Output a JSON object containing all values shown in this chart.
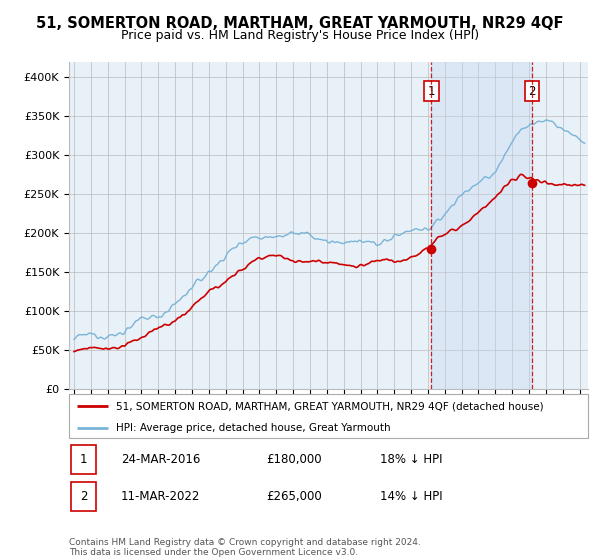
{
  "title": "51, SOMERTON ROAD, MARTHAM, GREAT YARMOUTH, NR29 4QF",
  "subtitle": "Price paid vs. HM Land Registry's House Price Index (HPI)",
  "ylabel_ticks": [
    "£0",
    "£50K",
    "£100K",
    "£150K",
    "£200K",
    "£250K",
    "£300K",
    "£350K",
    "£400K"
  ],
  "ytick_values": [
    0,
    50000,
    100000,
    150000,
    200000,
    250000,
    300000,
    350000,
    400000
  ],
  "ylim": [
    0,
    420000
  ],
  "xlim_start": 1994.7,
  "xlim_end": 2025.5,
  "purchase1_x": 2016.2,
  "purchase1_y": 180000,
  "purchase1_label": "1",
  "purchase2_x": 2022.18,
  "purchase2_y": 265000,
  "purchase2_label": "2",
  "line1_label": "51, SOMERTON ROAD, MARTHAM, GREAT YARMOUTH, NR29 4QF (detached house)",
  "line2_label": "HPI: Average price, detached house, Great Yarmouth",
  "table_row1": [
    "1",
    "24-MAR-2016",
    "£180,000",
    "18% ↓ HPI"
  ],
  "table_row2": [
    "2",
    "11-MAR-2022",
    "£265,000",
    "14% ↓ HPI"
  ],
  "footer": "Contains HM Land Registry data © Crown copyright and database right 2024.\nThis data is licensed under the Open Government Licence v3.0.",
  "hpi_color": "#7ab4d8",
  "price_color": "#cc0000",
  "vline_color": "#cc0000",
  "bg_color": "#e8f0f8",
  "bg_color2": "#dce8f5",
  "grid_color": "#bbbbbb",
  "title_fontsize": 10.5,
  "subtitle_fontsize": 9
}
